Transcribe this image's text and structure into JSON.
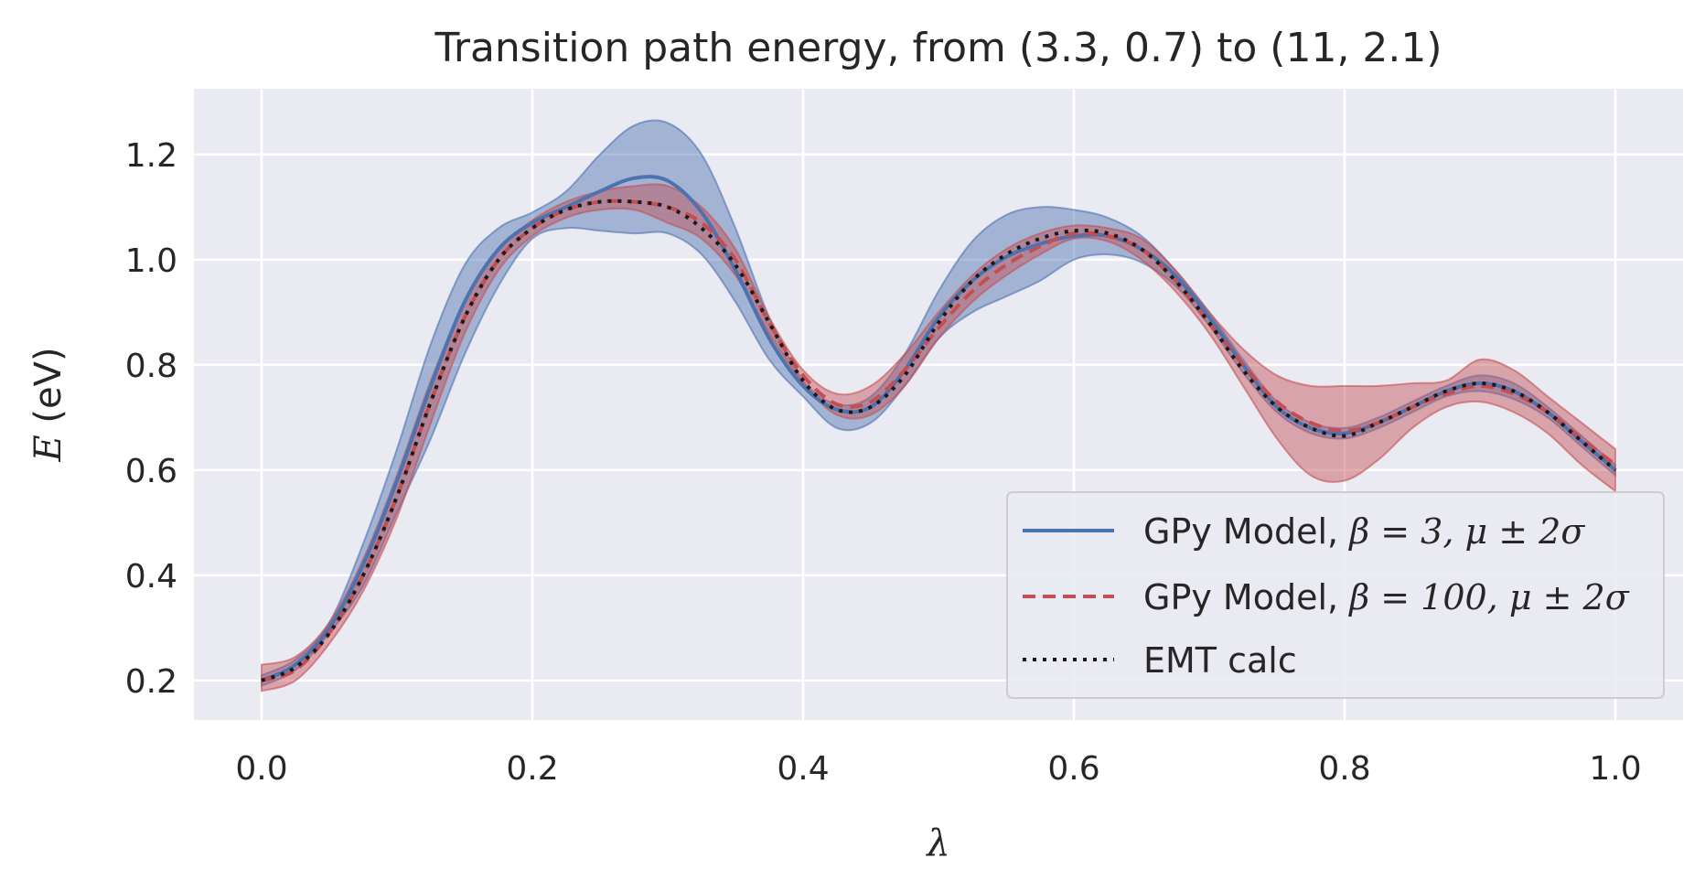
{
  "chart_data": {
    "type": "line",
    "title": "Transition path energy, from (3.3, 0.7) to (11, 2.1)",
    "xlabel": "λ",
    "ylabel_math": "E",
    "ylabel_unit": " (eV)",
    "xlim": [
      -0.05,
      1.05
    ],
    "ylim": [
      0.125,
      1.325
    ],
    "xticks": [
      0.0,
      0.2,
      0.4,
      0.6,
      0.8,
      1.0
    ],
    "xtick_labels": [
      "0.0",
      "0.2",
      "0.4",
      "0.6",
      "0.8",
      "1.0"
    ],
    "yticks": [
      0.2,
      0.4,
      0.6,
      0.8,
      1.0,
      1.2
    ],
    "ytick_labels": [
      "0.2",
      "0.4",
      "0.6",
      "0.8",
      "1.0",
      "1.2"
    ],
    "grid": true,
    "legend_position": "lower-right",
    "x": [
      0.0,
      0.025,
      0.05,
      0.075,
      0.1,
      0.125,
      0.15,
      0.175,
      0.2,
      0.225,
      0.25,
      0.275,
      0.3,
      0.325,
      0.35,
      0.375,
      0.4,
      0.425,
      0.45,
      0.475,
      0.5,
      0.525,
      0.55,
      0.575,
      0.6,
      0.625,
      0.65,
      0.675,
      0.7,
      0.725,
      0.75,
      0.775,
      0.8,
      0.825,
      0.85,
      0.875,
      0.9,
      0.925,
      0.95,
      0.975,
      1.0
    ],
    "series": [
      {
        "name": "GPy Model, ",
        "name_math": "β = 3, μ ± 2σ",
        "color": "#4c72b0",
        "style": "solid",
        "mean": [
          0.2,
          0.23,
          0.3,
          0.42,
          0.58,
          0.76,
          0.92,
          1.02,
          1.07,
          1.1,
          1.13,
          1.155,
          1.15,
          1.09,
          0.98,
          0.85,
          0.76,
          0.715,
          0.72,
          0.79,
          0.89,
          0.96,
          1.005,
          1.03,
          1.045,
          1.045,
          1.02,
          0.97,
          0.89,
          0.8,
          0.72,
          0.68,
          0.67,
          0.69,
          0.72,
          0.75,
          0.765,
          0.75,
          0.71,
          0.655,
          0.6
        ],
        "upper": [
          0.21,
          0.24,
          0.31,
          0.46,
          0.64,
          0.84,
          0.99,
          1.06,
          1.09,
          1.13,
          1.2,
          1.255,
          1.26,
          1.2,
          1.06,
          0.89,
          0.77,
          0.725,
          0.74,
          0.82,
          0.94,
          1.035,
          1.085,
          1.1,
          1.095,
          1.08,
          1.045,
          0.98,
          0.9,
          0.81,
          0.73,
          0.69,
          0.68,
          0.7,
          0.73,
          0.76,
          0.78,
          0.765,
          0.72,
          0.665,
          0.61
        ],
        "lower": [
          0.19,
          0.22,
          0.29,
          0.38,
          0.52,
          0.66,
          0.82,
          0.95,
          1.04,
          1.06,
          1.055,
          1.05,
          1.05,
          1.01,
          0.92,
          0.81,
          0.74,
          0.68,
          0.69,
          0.76,
          0.85,
          0.9,
          0.93,
          0.96,
          1.0,
          1.01,
          0.995,
          0.95,
          0.875,
          0.785,
          0.71,
          0.67,
          0.66,
          0.68,
          0.71,
          0.74,
          0.75,
          0.735,
          0.7,
          0.645,
          0.59
        ]
      },
      {
        "name": "GPy Model, ",
        "name_math": "β = 100, μ ± 2σ",
        "color": "#c44e52",
        "style": "dashed",
        "mean": [
          0.2,
          0.22,
          0.29,
          0.4,
          0.55,
          0.73,
          0.89,
          1.0,
          1.06,
          1.095,
          1.11,
          1.11,
          1.1,
          1.07,
          1.0,
          0.88,
          0.78,
          0.725,
          0.73,
          0.79,
          0.87,
          0.94,
          0.99,
          1.025,
          1.05,
          1.045,
          1.02,
          0.96,
          0.88,
          0.8,
          0.73,
          0.69,
          0.675,
          0.69,
          0.72,
          0.745,
          0.76,
          0.745,
          0.71,
          0.66,
          0.61
        ],
        "upper": [
          0.23,
          0.245,
          0.31,
          0.43,
          0.59,
          0.77,
          0.92,
          1.02,
          1.075,
          1.11,
          1.13,
          1.14,
          1.14,
          1.1,
          1.02,
          0.89,
          0.79,
          0.745,
          0.76,
          0.82,
          0.9,
          0.97,
          1.02,
          1.05,
          1.065,
          1.06,
          1.04,
          0.98,
          0.9,
          0.83,
          0.78,
          0.76,
          0.76,
          0.76,
          0.765,
          0.77,
          0.81,
          0.79,
          0.74,
          0.69,
          0.64
        ],
        "lower": [
          0.18,
          0.2,
          0.27,
          0.37,
          0.51,
          0.69,
          0.86,
          0.98,
          1.045,
          1.08,
          1.095,
          1.095,
          1.07,
          1.04,
          0.97,
          0.86,
          0.765,
          0.705,
          0.705,
          0.76,
          0.85,
          0.92,
          0.97,
          1.01,
          1.04,
          1.035,
          1.0,
          0.94,
          0.86,
          0.76,
          0.66,
          0.59,
          0.58,
          0.62,
          0.68,
          0.72,
          0.73,
          0.71,
          0.67,
          0.61,
          0.56
        ]
      },
      {
        "name": "EMT calc",
        "name_math": "",
        "color": "#1a1a1a",
        "style": "dotted",
        "values": [
          0.2,
          0.225,
          0.29,
          0.4,
          0.55,
          0.73,
          0.89,
          1.0,
          1.06,
          1.095,
          1.11,
          1.11,
          1.1,
          1.06,
          0.99,
          0.88,
          0.77,
          0.715,
          0.72,
          0.78,
          0.88,
          0.96,
          1.01,
          1.04,
          1.055,
          1.05,
          1.02,
          0.96,
          0.88,
          0.79,
          0.72,
          0.68,
          0.665,
          0.69,
          0.72,
          0.75,
          0.765,
          0.75,
          0.71,
          0.655,
          0.6
        ]
      }
    ]
  }
}
